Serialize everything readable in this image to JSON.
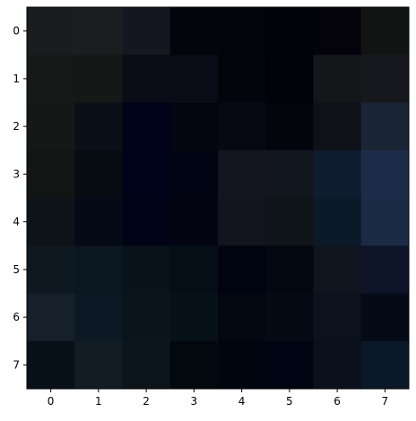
{
  "chart_data": {
    "type": "heatmap",
    "title": "",
    "xlabel": "",
    "ylabel": "",
    "x_categories": [
      "0",
      "1",
      "2",
      "3",
      "4",
      "5",
      "6",
      "7"
    ],
    "y_categories": [
      "0",
      "1",
      "2",
      "3",
      "4",
      "5",
      "6",
      "7"
    ],
    "cell_colors": [
      [
        "#1a1d1f",
        "#1b1e20",
        "#14171f",
        "#03050b",
        "#02040b",
        "#01030b",
        "#04030c",
        "#101513"
      ],
      [
        "#151917",
        "#141816",
        "#0b0c18",
        "#090b16",
        "#03050c",
        "#01030a",
        "#141619",
        "#16181e"
      ],
      [
        "#141816",
        "#0b0f17",
        "#00021a",
        "#03060f",
        "#060814",
        "#02050c",
        "#0f1119",
        "#1a2535"
      ],
      [
        "#111614",
        "#060c12",
        "#00031a",
        "#010513",
        "#131620",
        "#12161f",
        "#0f1c2f",
        "#1c2c48"
      ],
      [
        "#0d1419",
        "#050a17",
        "#000316",
        "#020412",
        "#11141c",
        "#0f1419",
        "#0c1929",
        "#1b2a45"
      ],
      [
        "#0e1820",
        "#0a1620",
        "#08121a",
        "#050e16",
        "#000411",
        "#030710",
        "#10141f",
        "#0d1427"
      ],
      [
        "#16202a",
        "#0c1823",
        "#09141b",
        "#071118",
        "#030711",
        "#060a14",
        "#0b111d",
        "#050a17"
      ],
      [
        "#08101a",
        "#121c24",
        "#0c151c",
        "#02080d",
        "#010510",
        "#000312",
        "#0b111c",
        "#0b1828"
      ]
    ],
    "grid": false,
    "colorbar": false
  }
}
